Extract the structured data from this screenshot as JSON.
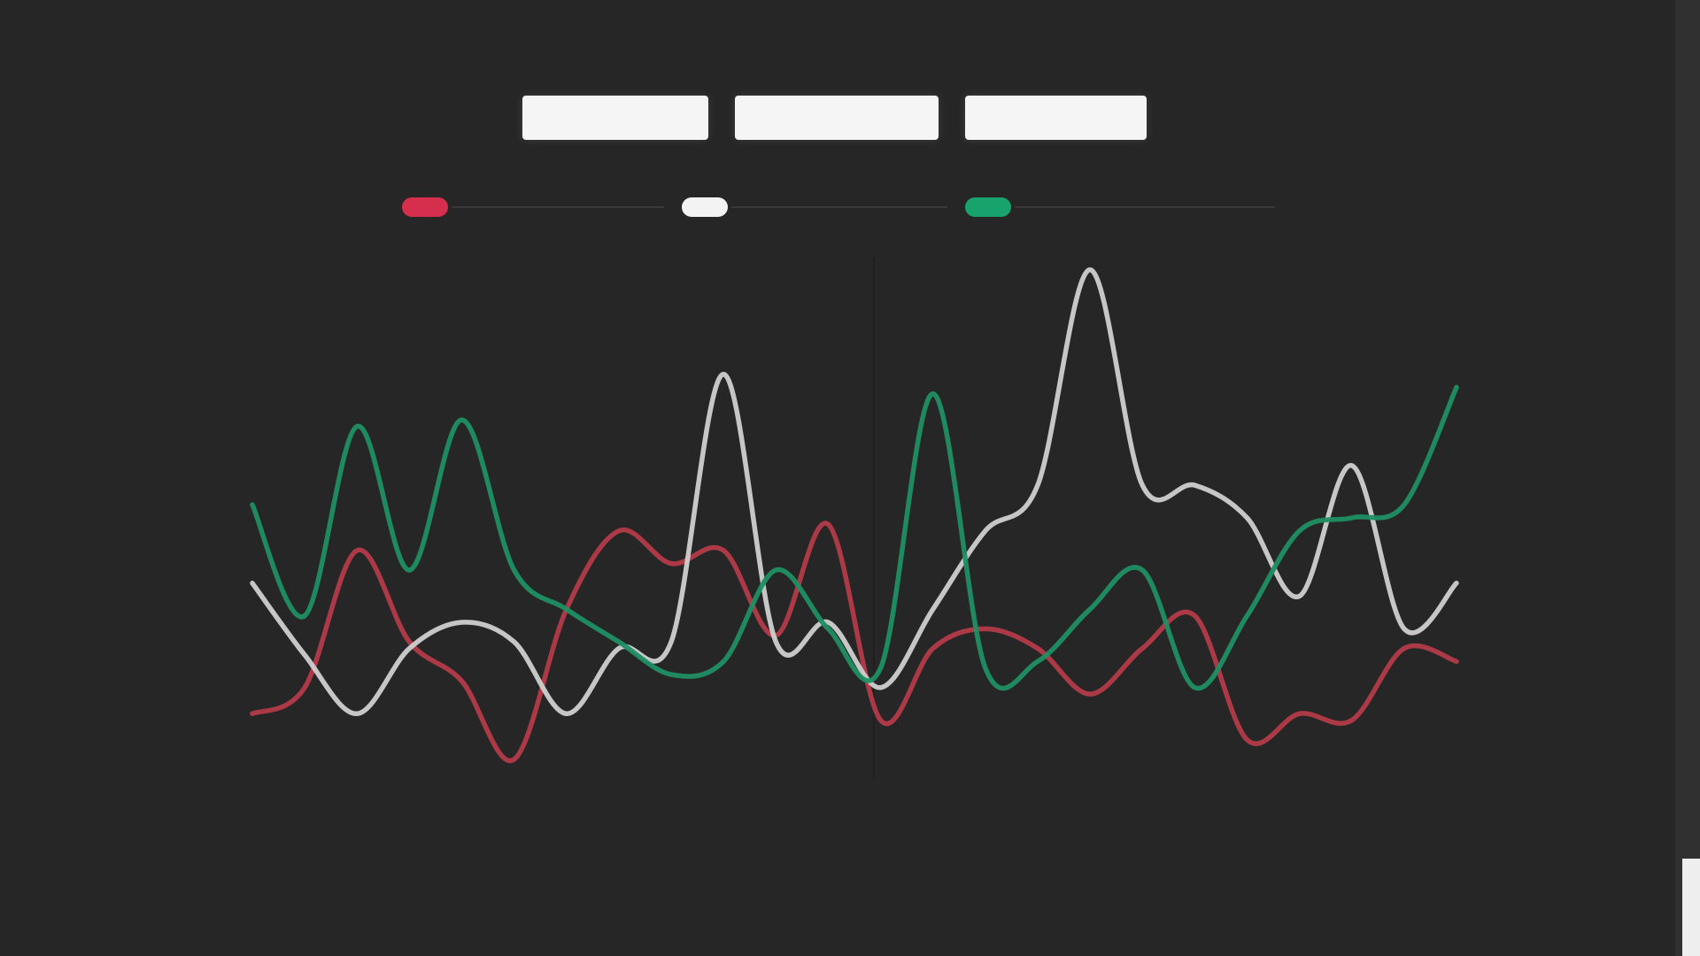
{
  "controls": {
    "buttons": [
      "",
      "",
      ""
    ]
  },
  "colors": {
    "background": "#262626",
    "red": "#b23a48",
    "white": "#cfcfcf",
    "green": "#1f8f63",
    "legendRed": "#d62e4d",
    "legendWhite": "#f3f3f3",
    "legendGreen": "#17a36b"
  },
  "chart_data": {
    "type": "line",
    "grid": false,
    "legend_placement": "top-center",
    "y_ticks": [
      "",
      "",
      "",
      "",
      "",
      "",
      "",
      "",
      ""
    ],
    "x_ticks": [
      "",
      "",
      "",
      "",
      "",
      "",
      "",
      "",
      "",
      "",
      "",
      "",
      "",
      "",
      "",
      "",
      "",
      "",
      "",
      "",
      "",
      "",
      "",
      ""
    ],
    "top_labels": [
      "",
      ""
    ],
    "legend": [
      {
        "name": "",
        "color": "#d62e4d"
      },
      {
        "name": "",
        "color": "#f3f3f3"
      },
      {
        "name": "",
        "color": "#17a36b"
      }
    ],
    "bottom_labels": [
      {
        "text": "",
        "color": "#b23a48"
      },
      {
        "text": "",
        "color": "#cfcfcf"
      },
      {
        "text": "",
        "color": "#1f8f63"
      },
      {
        "text": "",
        "color": "#b23a48"
      },
      {
        "text": "",
        "color": "#cfcfcf"
      },
      {
        "text": "",
        "color": "#1f8f63"
      }
    ],
    "x": [
      1,
      2,
      3,
      4,
      5,
      6,
      7,
      8,
      9,
      10,
      11,
      12,
      13,
      14,
      15,
      16,
      17,
      18,
      19,
      20,
      21,
      22,
      23,
      24
    ],
    "ylim": [
      0,
      8
    ],
    "series": [
      {
        "color": "#b23a48",
        "values": [
          1.0,
          1.4,
          3.5,
          2.1,
          1.5,
          0.3,
          2.6,
          3.8,
          3.3,
          3.5,
          2.2,
          3.9,
          0.9,
          2.0,
          2.3,
          2.0,
          1.3,
          2.0,
          2.5,
          0.6,
          1.0,
          0.9,
          2.0,
          1.8
        ]
      },
      {
        "color": "#cfcfcf",
        "values": [
          3.0,
          1.9,
          1.0,
          2.0,
          2.4,
          2.1,
          1.0,
          2.0,
          2.1,
          6.2,
          2.1,
          2.4,
          1.4,
          2.6,
          3.8,
          4.5,
          7.8,
          4.5,
          4.5,
          4.0,
          2.8,
          4.8,
          2.3,
          3.0
        ]
      },
      {
        "color": "#1f8f63",
        "values": [
          4.2,
          2.5,
          5.4,
          3.2,
          5.5,
          3.2,
          2.6,
          2.1,
          1.6,
          1.8,
          3.2,
          2.3,
          1.7,
          5.9,
          1.7,
          1.8,
          2.6,
          3.2,
          1.4,
          2.5,
          3.8,
          4.0,
          4.2,
          6.0
        ]
      }
    ]
  }
}
